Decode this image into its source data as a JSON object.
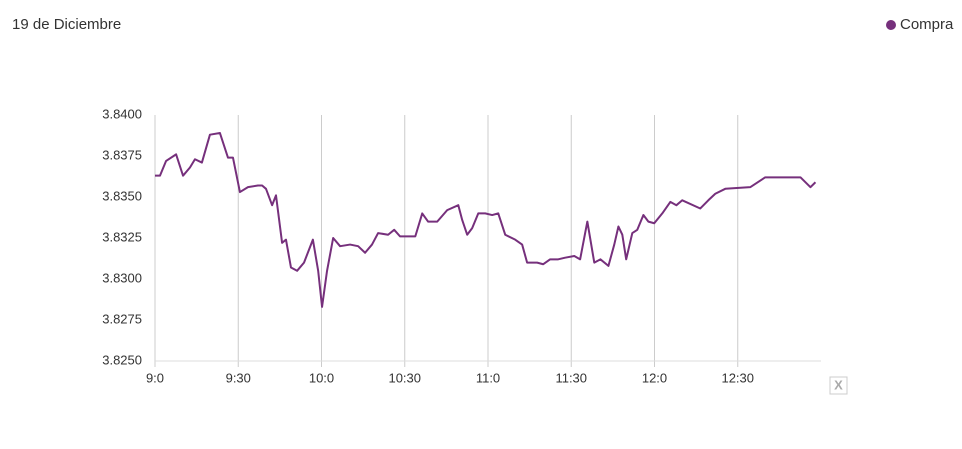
{
  "chart_data": {
    "type": "line",
    "title": "19 de Diciembre",
    "legend_position": "top-right",
    "grid": "x",
    "reset_label": "X",
    "xlim": [
      540,
      780
    ],
    "ylim": [
      3.825,
      3.84
    ],
    "xticks": [
      {
        "value": 540,
        "label": "9:0"
      },
      {
        "value": 570,
        "label": "9:30"
      },
      {
        "value": 600,
        "label": "10:0"
      },
      {
        "value": 630,
        "label": "10:30"
      },
      {
        "value": 660,
        "label": "11:0"
      },
      {
        "value": 690,
        "label": "11:30"
      },
      {
        "value": 720,
        "label": "12:0"
      },
      {
        "value": 750,
        "label": "12:30"
      }
    ],
    "yticks": [
      {
        "value": 3.825,
        "label": "3.8250"
      },
      {
        "value": 3.8275,
        "label": "3.8275"
      },
      {
        "value": 3.83,
        "label": "3.8300"
      },
      {
        "value": 3.8325,
        "label": "3.8325"
      },
      {
        "value": 3.835,
        "label": "3.8350"
      },
      {
        "value": 3.8375,
        "label": "3.8375"
      },
      {
        "value": 3.84,
        "label": "3.8400"
      }
    ],
    "x": [
      540.0,
      541.8,
      544.0,
      547.6,
      550.1,
      552.6,
      554.4,
      556.9,
      559.8,
      563.4,
      566.3,
      568.1,
      570.6,
      573.5,
      577.1,
      578.6,
      580.0,
      582.2,
      583.6,
      585.8,
      587.2,
      589.0,
      591.2,
      593.7,
      596.9,
      598.8,
      600.2,
      602.0,
      604.2,
      606.7,
      610.3,
      613.2,
      615.7,
      618.2,
      620.4,
      624.0,
      626.2,
      628.3,
      632.0,
      633.8,
      636.3,
      638.4,
      641.7,
      645.3,
      649.3,
      650.7,
      652.5,
      654.3,
      656.5,
      659.0,
      661.5,
      663.7,
      666.2,
      669.8,
      672.3,
      674.1,
      677.7,
      679.9,
      682.4,
      685.3,
      687.8,
      691.1,
      693.2,
      695.8,
      698.3,
      700.5,
      703.4,
      705.5,
      707.0,
      708.4,
      709.8,
      712.0,
      713.8,
      716.0,
      717.8,
      719.9,
      722.8,
      725.7,
      727.9,
      730.0,
      736.5,
      739.4,
      741.9,
      745.5,
      754.5,
      759.9,
      772.6,
      776.2,
      778.0
    ],
    "series": [
      {
        "name": "Compra",
        "color": "#76307c",
        "values": [
          3.8363,
          3.8363,
          3.8372,
          3.8376,
          3.8363,
          3.8368,
          3.8373,
          3.8371,
          3.8388,
          3.8389,
          3.8374,
          3.8374,
          3.8353,
          3.8356,
          3.8357,
          3.8357,
          3.8355,
          3.8345,
          3.8351,
          3.8322,
          3.8324,
          3.8307,
          3.8305,
          3.831,
          3.8324,
          3.8305,
          3.8283,
          3.8305,
          3.8325,
          3.832,
          3.8321,
          3.832,
          3.8316,
          3.8321,
          3.8328,
          3.8327,
          3.833,
          3.8326,
          3.8326,
          3.8326,
          3.834,
          3.8335,
          3.8335,
          3.8342,
          3.8345,
          3.8336,
          3.8327,
          3.8331,
          3.834,
          3.834,
          3.8339,
          3.834,
          3.8327,
          3.8324,
          3.8321,
          3.831,
          3.831,
          3.8309,
          3.8312,
          3.8312,
          3.8313,
          3.8314,
          3.8312,
          3.8335,
          3.831,
          3.8312,
          3.8308,
          3.8321,
          3.8332,
          3.8327,
          3.8312,
          3.8328,
          3.833,
          3.8339,
          3.8335,
          3.8334,
          3.834,
          3.8347,
          3.8345,
          3.8348,
          3.8343,
          3.8348,
          3.8352,
          3.8355,
          3.8356,
          3.8362,
          3.8362,
          3.8356,
          3.8359
        ]
      }
    ]
  }
}
